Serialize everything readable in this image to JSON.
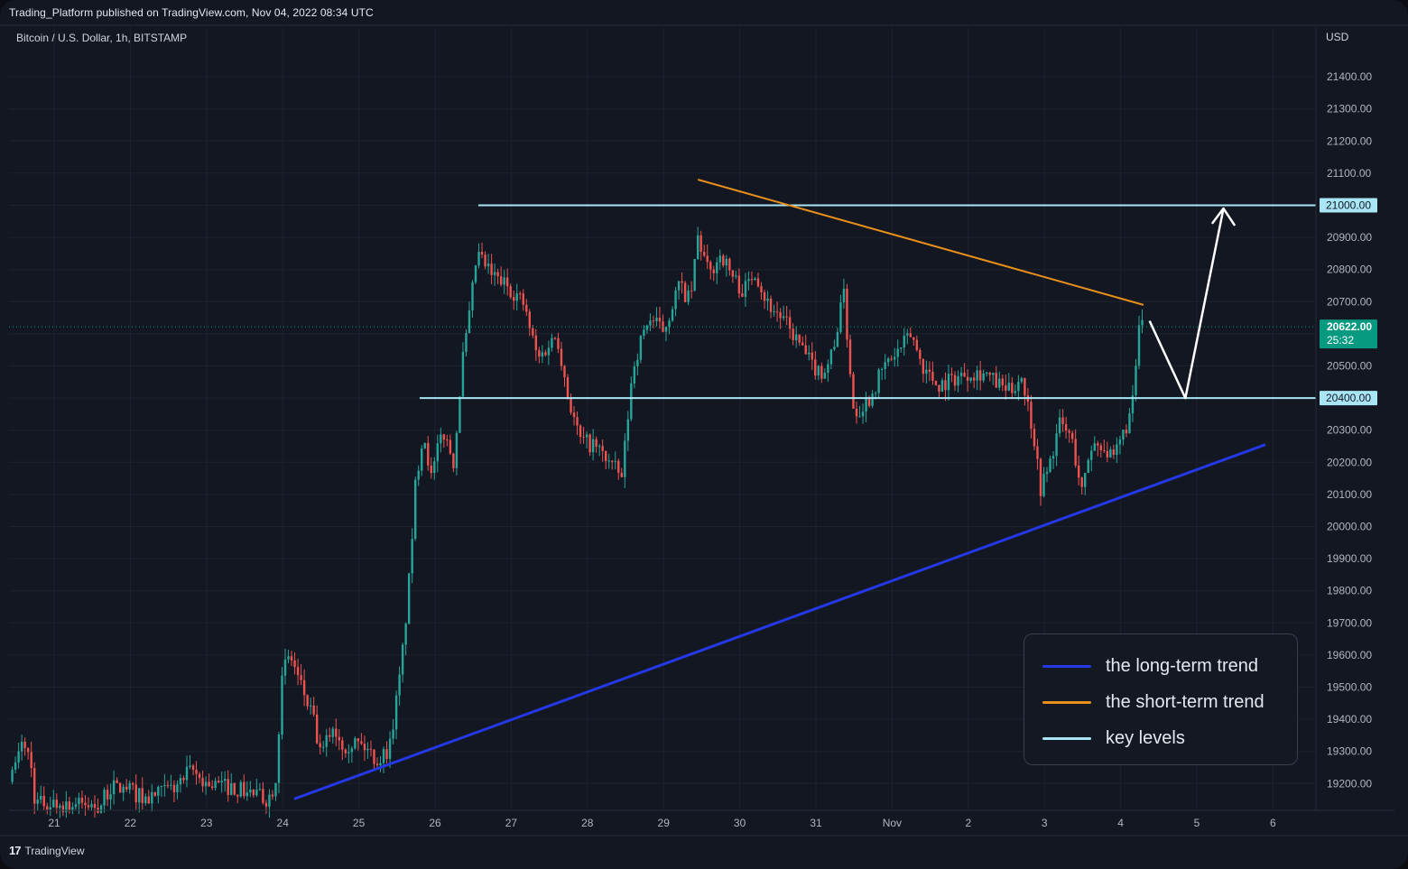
{
  "header": {
    "published": "Trading_Platform published on TradingView.com, Nov 04, 2022 08:34 UTC",
    "symbol": "Bitcoin / U.S. Dollar, 1h, BITSTAMP",
    "currency": "USD",
    "brand": "TradingView"
  },
  "colors": {
    "background": "#131722",
    "up_candle": "#26a69a",
    "down_candle": "#ef5350",
    "long_term_trend": "#2438e6",
    "short_term_trend": "#e8901c",
    "key_levels": "#a8e6f5",
    "projection": "#ffffff",
    "price_tag": "#089981"
  },
  "chart_data": {
    "type": "candlestick",
    "y_axis": {
      "ticks": [
        "21400.00",
        "21300.00",
        "21200.00",
        "21100.00",
        "21000.00",
        "20900.00",
        "20800.00",
        "20700.00",
        "20600.00",
        "20500.00",
        "20400.00",
        "20300.00",
        "20200.00",
        "20100.00",
        "20000.00",
        "19900.00",
        "19800.00",
        "19700.00",
        "19600.00",
        "19500.00",
        "19400.00",
        "19300.00",
        "19200.00"
      ],
      "tick_values": [
        21400,
        21300,
        21200,
        21100,
        21000,
        20900,
        20800,
        20700,
        20600,
        20500,
        20400,
        20300,
        20200,
        20100,
        20000,
        19900,
        19800,
        19700,
        19600,
        19500,
        19400,
        19300,
        19200
      ],
      "range": [
        19120,
        21500
      ]
    },
    "x_axis": {
      "labels": [
        "21",
        "22",
        "23",
        "24",
        "25",
        "26",
        "27",
        "28",
        "29",
        "30",
        "31",
        "Nov",
        "2",
        "3",
        "4",
        "5",
        "6"
      ],
      "day_index": [
        0,
        1,
        2,
        3,
        4,
        5,
        6,
        7,
        8,
        9,
        10,
        11,
        12,
        13,
        14,
        15,
        16
      ]
    },
    "current_price": "20622.00",
    "countdown": "25:32",
    "key_levels": [
      {
        "value": 21000,
        "label": "21000.00"
      },
      {
        "value": 20400,
        "label": "20400.00"
      }
    ],
    "trendlines": [
      {
        "name": "long-term",
        "from": {
          "day": 3.15,
          "price": 19152
        },
        "to": {
          "day": 15.9,
          "price": 20255
        }
      },
      {
        "name": "short-term",
        "from": {
          "day": 8.45,
          "price": 21080
        },
        "to": {
          "day": 14.3,
          "price": 20690
        }
      }
    ],
    "projection": [
      {
        "day": 14.38,
        "price": 20640
      },
      {
        "day": 14.85,
        "price": 20400
      },
      {
        "day": 15.35,
        "price": 20990
      }
    ],
    "price_path": [
      [
        -0.55,
        19220
      ],
      [
        -0.4,
        19340
      ],
      [
        -0.3,
        19250
      ],
      [
        -0.25,
        19140
      ],
      [
        0.6,
        19130
      ],
      [
        0.75,
        19190
      ],
      [
        1.0,
        19180
      ],
      [
        1.2,
        19150
      ],
      [
        1.4,
        19170
      ],
      [
        1.6,
        19190
      ],
      [
        1.8,
        19240
      ],
      [
        2.0,
        19200
      ],
      [
        2.3,
        19190
      ],
      [
        2.6,
        19170
      ],
      [
        2.8,
        19150
      ],
      [
        2.9,
        19200
      ],
      [
        3.0,
        19550
      ],
      [
        3.1,
        19600
      ],
      [
        3.2,
        19530
      ],
      [
        3.4,
        19400
      ],
      [
        3.5,
        19280
      ],
      [
        3.65,
        19380
      ],
      [
        3.8,
        19320
      ],
      [
        3.95,
        19330
      ],
      [
        4.1,
        19310
      ],
      [
        4.25,
        19270
      ],
      [
        4.4,
        19310
      ],
      [
        4.55,
        19550
      ],
      [
        4.65,
        19800
      ],
      [
        4.75,
        20150
      ],
      [
        4.85,
        20300
      ],
      [
        4.95,
        20150
      ],
      [
        5.1,
        20300
      ],
      [
        5.25,
        20200
      ],
      [
        5.35,
        20500
      ],
      [
        5.45,
        20650
      ],
      [
        5.55,
        20850
      ],
      [
        5.75,
        20780
      ],
      [
        5.95,
        20750
      ],
      [
        6.15,
        20700
      ],
      [
        6.35,
        20520
      ],
      [
        6.6,
        20600
      ],
      [
        6.75,
        20400
      ],
      [
        6.9,
        20270
      ],
      [
        7.1,
        20250
      ],
      [
        7.3,
        20200
      ],
      [
        7.45,
        20150
      ],
      [
        7.6,
        20500
      ],
      [
        7.8,
        20650
      ],
      [
        8.0,
        20610
      ],
      [
        8.2,
        20750
      ],
      [
        8.35,
        20700
      ],
      [
        8.45,
        20900
      ],
      [
        8.6,
        20780
      ],
      [
        8.75,
        20850
      ],
      [
        8.9,
        20780
      ],
      [
        9.05,
        20730
      ],
      [
        9.2,
        20800
      ],
      [
        9.35,
        20700
      ],
      [
        9.55,
        20650
      ],
      [
        9.75,
        20580
      ],
      [
        9.95,
        20500
      ],
      [
        10.1,
        20480
      ],
      [
        10.25,
        20560
      ],
      [
        10.35,
        20760
      ],
      [
        10.5,
        20350
      ],
      [
        10.7,
        20400
      ],
      [
        10.9,
        20500
      ],
      [
        11.1,
        20550
      ],
      [
        11.25,
        20600
      ],
      [
        11.4,
        20500
      ],
      [
        11.6,
        20440
      ],
      [
        11.8,
        20460
      ],
      [
        12.0,
        20480
      ],
      [
        12.2,
        20480
      ],
      [
        12.4,
        20440
      ],
      [
        12.55,
        20420
      ],
      [
        12.7,
        20470
      ],
      [
        12.85,
        20300
      ],
      [
        12.95,
        20120
      ],
      [
        13.05,
        20180
      ],
      [
        13.2,
        20320
      ],
      [
        13.35,
        20280
      ],
      [
        13.5,
        20100
      ],
      [
        13.6,
        20250
      ],
      [
        13.75,
        20260
      ],
      [
        13.9,
        20200
      ],
      [
        14.05,
        20300
      ],
      [
        14.15,
        20360
      ],
      [
        14.25,
        20640
      ],
      [
        14.32,
        20625
      ]
    ]
  },
  "legend": [
    {
      "label": "the long-term trend",
      "color": "#2438e6"
    },
    {
      "label": "the short-term trend",
      "color": "#e8901c"
    },
    {
      "label": "key levels",
      "color": "#a8e6f5"
    }
  ]
}
